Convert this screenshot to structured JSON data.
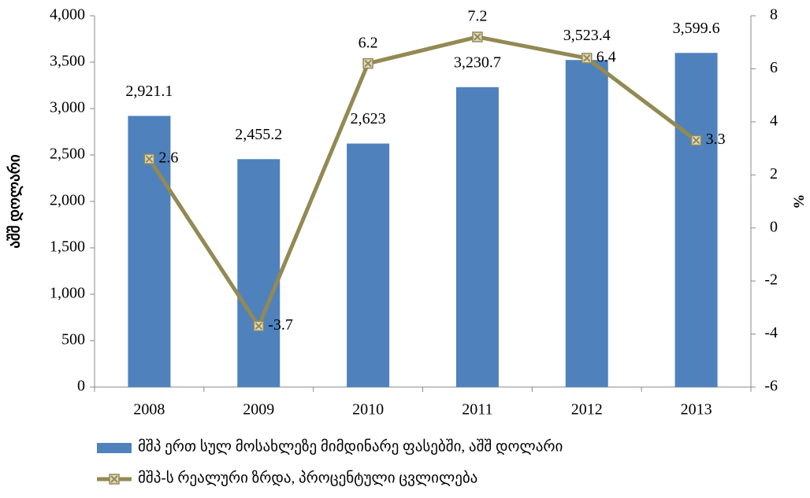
{
  "chart_data": {
    "type": "bar-line",
    "categories": [
      "2008",
      "2009",
      "2010",
      "2011",
      "2012",
      "2013"
    ],
    "y_label": "აშშ დოლარი",
    "y2_label": "%",
    "series": [
      {
        "name": "მშპ ერთ სულ მოსახლეზე მიმდინარე ფასებში, აშშ დოლარი",
        "type": "bar",
        "color": "#4f81bd",
        "values": [
          2921.1,
          2455.2,
          2623,
          3230.7,
          3523.4,
          3599.6
        ],
        "value_labels": [
          "2,921.1",
          "2,455.2",
          "2,623",
          "3,230.7",
          "3,523.4",
          "3,599.6"
        ]
      },
      {
        "name": "მშპ-ს რეალური ზრდა, პროცენტული ცვლილება",
        "type": "line",
        "axis": "y2",
        "color": "#938953",
        "values": [
          2.6,
          -3.7,
          6.2,
          7.2,
          6.4,
          3.3
        ]
      }
    ],
    "ylim": [
      0,
      4000
    ],
    "yticks": [
      0,
      500,
      {
        "value": 1000,
        "label": "1,000"
      },
      {
        "value": 1500,
        "label": "1,500"
      },
      {
        "value": 2000,
        "label": "2,000"
      },
      {
        "value": 2500,
        "label": "2,500"
      },
      {
        "value": 3000,
        "label": "3,000"
      },
      {
        "value": 3500,
        "label": "3,500"
      },
      {
        "value": 4000,
        "label": "4,000"
      }
    ],
    "y2lim": [
      -6,
      8
    ],
    "y2ticks": [
      -6,
      -4,
      -2,
      0,
      2,
      4,
      6,
      8
    ],
    "legend": "bottom"
  }
}
